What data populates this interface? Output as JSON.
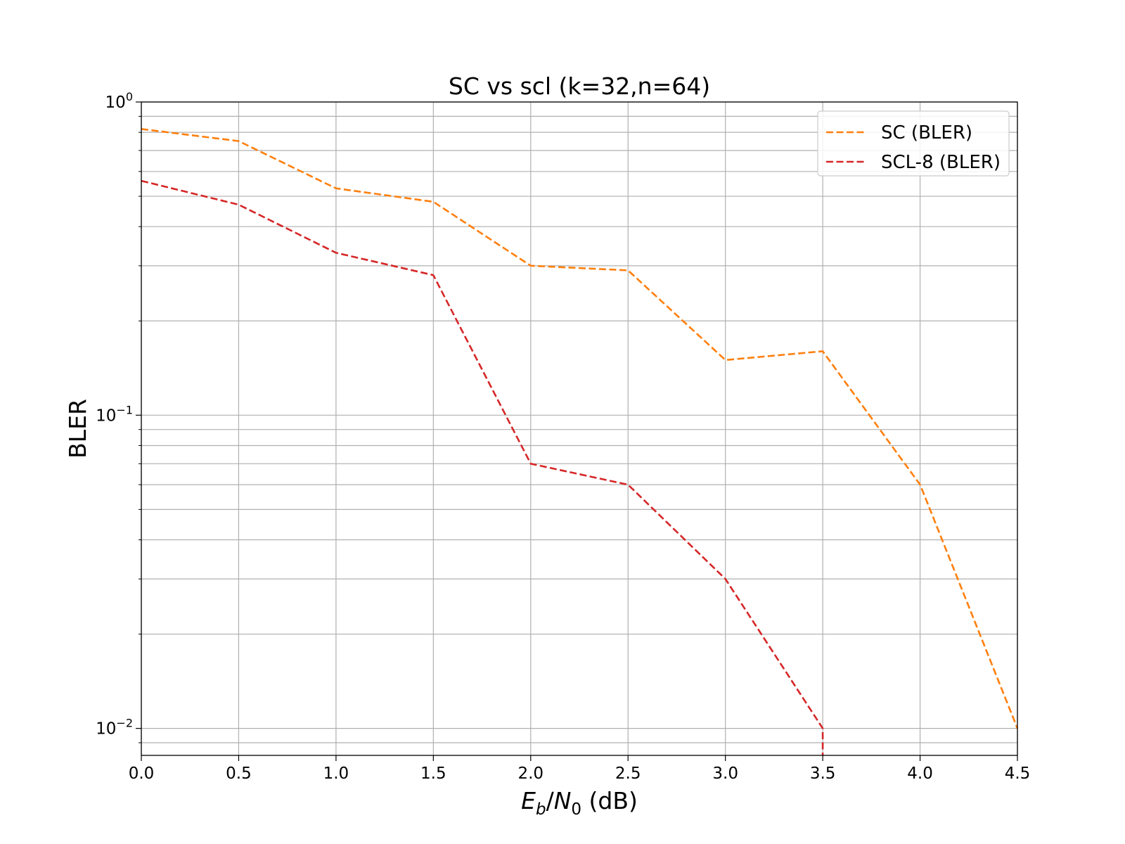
{
  "chart_data": {
    "type": "line",
    "title": "SC vs scl (k=32,n=64)",
    "xlabel": {
      "base": "E",
      "base_sub": "b",
      "sep": "/",
      "den": "N",
      "den_sub": "0",
      "unit": " (dB)"
    },
    "ylabel": "BLER",
    "xlim": [
      0.0,
      4.5
    ],
    "ylim": [
      0.0082,
      1.0
    ],
    "yscale": "log",
    "grid": true,
    "legend_position": "upper-right",
    "x_ticks": [
      "0.0",
      "0.5",
      "1.0",
      "1.5",
      "2.0",
      "2.5",
      "3.0",
      "3.5",
      "4.0",
      "4.5"
    ],
    "y_ticks": [
      {
        "base": "10",
        "exp": "0",
        "value": 1.0
      },
      {
        "base": "10",
        "exp": "−1",
        "value": 0.1
      },
      {
        "base": "10",
        "exp": "−2",
        "value": 0.01
      }
    ],
    "series": [
      {
        "name": "SC (BLER)",
        "color": "#ff7f0e",
        "line_style": "dashed",
        "x": [
          0.0,
          0.5,
          1.0,
          1.5,
          2.0,
          2.5,
          3.0,
          3.5,
          4.0,
          4.5
        ],
        "y": [
          0.82,
          0.75,
          0.53,
          0.48,
          0.3,
          0.29,
          0.15,
          0.16,
          0.06,
          0.01
        ]
      },
      {
        "name": "SCL-8 (BLER)",
        "color": "#d62728",
        "line_style": "dashed",
        "x": [
          0.0,
          0.5,
          1.0,
          1.5,
          2.0,
          2.5,
          3.0,
          3.5,
          3.5
        ],
        "y": [
          0.56,
          0.47,
          0.33,
          0.28,
          0.07,
          0.06,
          0.03,
          0.01,
          0.0082
        ]
      }
    ]
  }
}
